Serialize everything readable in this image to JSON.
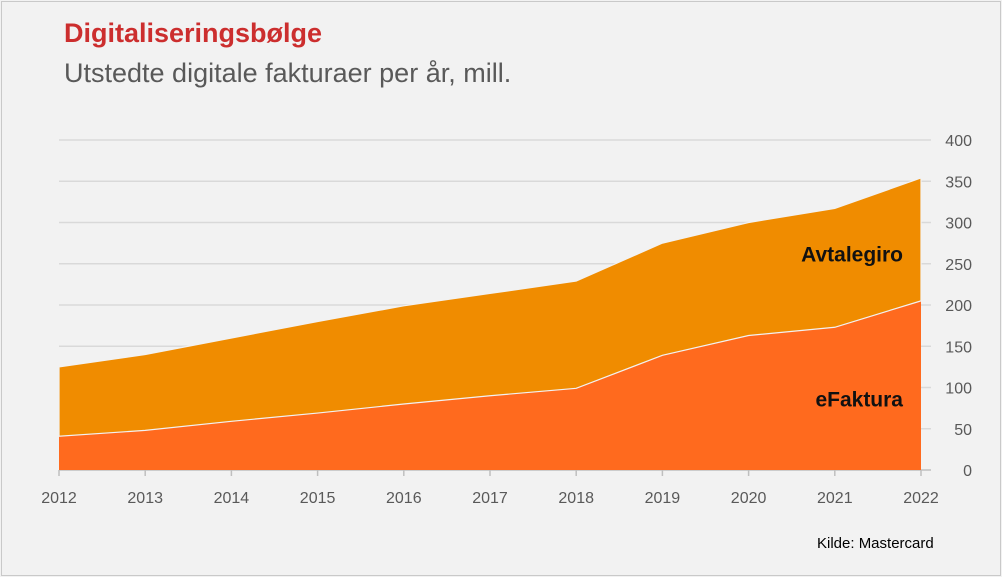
{
  "chart_data": {
    "type": "area",
    "stacked": true,
    "title": "Digitaliseringsbølge",
    "subtitle": "Utstedte digitale fakturaer per år, mill.",
    "x": [
      "2012",
      "2013",
      "2014",
      "2015",
      "2016",
      "2017",
      "2018",
      "2019",
      "2020",
      "2021",
      "2022"
    ],
    "ylim": [
      0,
      400
    ],
    "yticks": [
      0,
      50,
      100,
      150,
      200,
      250,
      300,
      350,
      400
    ],
    "y_axis_side": "right",
    "grid": true,
    "series": [
      {
        "name": "eFaktura",
        "color": "#ff6a1e",
        "values": [
          41,
          48,
          59,
          69,
          80,
          90,
          99,
          139,
          163,
          173,
          205
        ]
      },
      {
        "name": "Avtalegiro",
        "color": "#f08c00",
        "values": [
          84,
          92,
          101,
          111,
          119,
          124,
          130,
          136,
          137,
          144,
          149
        ]
      }
    ],
    "source": "Kilde: Mastercard"
  }
}
